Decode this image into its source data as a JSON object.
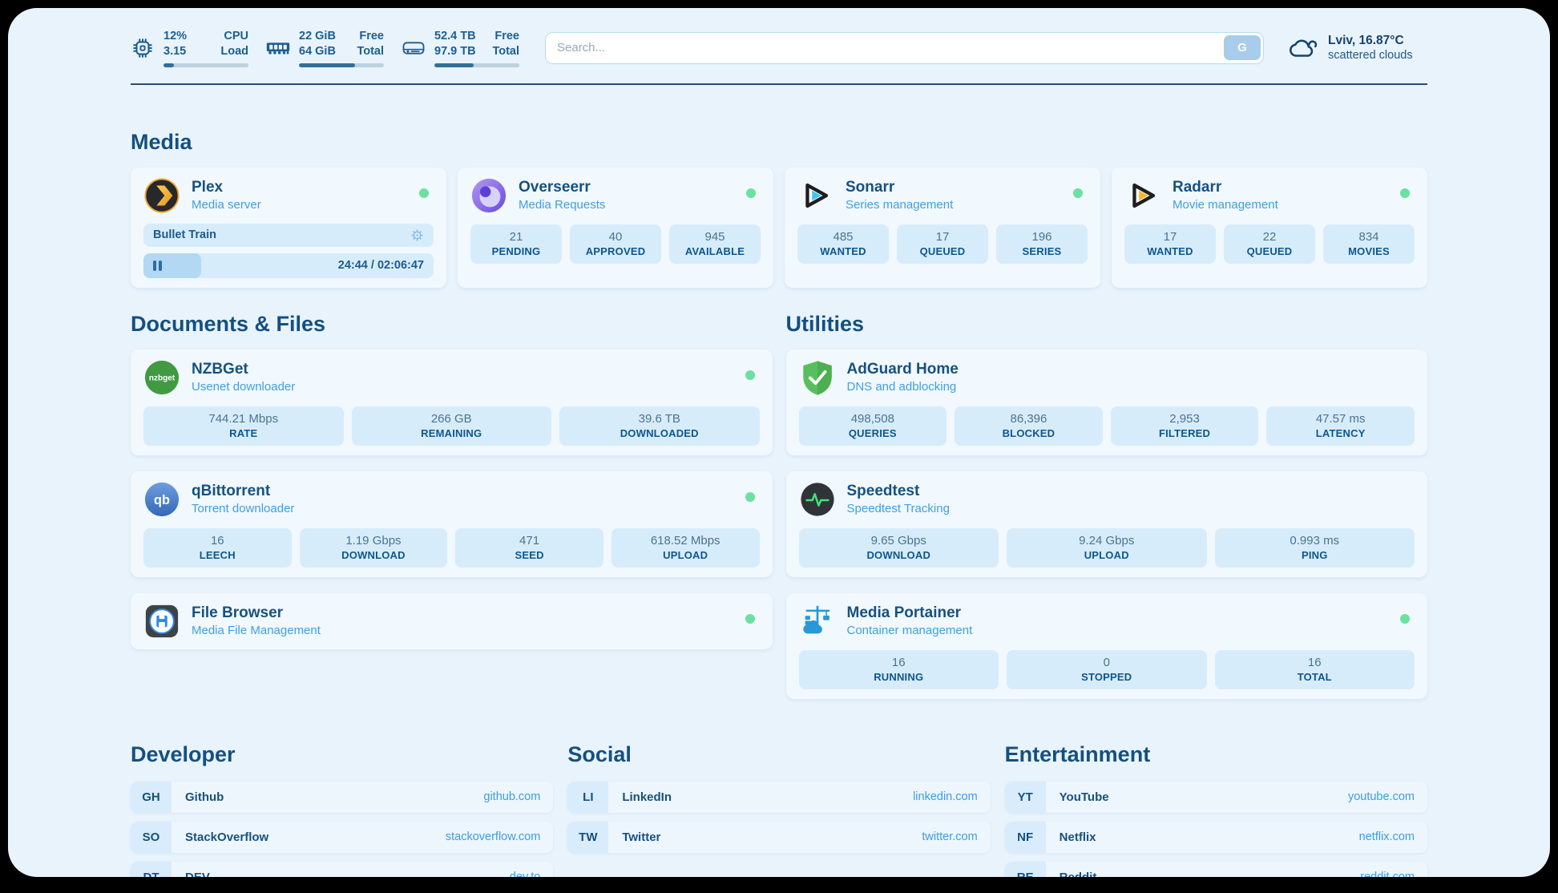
{
  "header": {
    "metrics": [
      {
        "icon": "cpu-icon",
        "rows": [
          [
            "12%",
            "CPU"
          ],
          [
            "3.15",
            "Load"
          ]
        ],
        "progress_pct": 12
      },
      {
        "icon": "ram-icon",
        "rows": [
          [
            "22 GiB",
            "Free"
          ],
          [
            "64 GiB",
            "Total"
          ]
        ],
        "progress_pct": 66
      },
      {
        "icon": "disk-icon",
        "rows": [
          [
            "52.4 TB",
            "Free"
          ],
          [
            "97.9 TB",
            "Total"
          ]
        ],
        "progress_pct": 46
      }
    ],
    "search": {
      "placeholder": "Search...",
      "button_label": "G"
    },
    "weather": {
      "icon": "cloud-icon",
      "location": "Lviv, 16.87°C",
      "condition": "scattered clouds"
    }
  },
  "media_section": {
    "title": "Media",
    "apps": [
      {
        "icon": "plex-icon",
        "title": "Plex",
        "subtitle": "Media server",
        "online": true,
        "player": {
          "now_playing": "Bullet Train",
          "progress_pct": 20,
          "time": "24:44 / 02:06:47"
        }
      },
      {
        "icon": "overseerr-icon",
        "title": "Overseerr",
        "subtitle": "Media Requests",
        "online": true,
        "stats": [
          {
            "value": "21",
            "label": "PENDING"
          },
          {
            "value": "40",
            "label": "APPROVED"
          },
          {
            "value": "945",
            "label": "AVAILABLE"
          }
        ]
      },
      {
        "icon": "sonarr-icon",
        "title": "Sonarr",
        "subtitle": "Series management",
        "online": true,
        "stats": [
          {
            "value": "485",
            "label": "WANTED"
          },
          {
            "value": "17",
            "label": "QUEUED"
          },
          {
            "value": "196",
            "label": "SERIES"
          }
        ]
      },
      {
        "icon": "radarr-icon",
        "title": "Radarr",
        "subtitle": "Movie management",
        "online": true,
        "stats": [
          {
            "value": "17",
            "label": "WANTED"
          },
          {
            "value": "22",
            "label": "QUEUED"
          },
          {
            "value": "834",
            "label": "MOVIES"
          }
        ]
      }
    ]
  },
  "columns": [
    {
      "title": "Documents & Files",
      "apps": [
        {
          "icon": "nzbget-icon",
          "title": "NZBGet",
          "subtitle": "Usenet downloader",
          "online": true,
          "stats": [
            {
              "value": "744.21 Mbps",
              "label": "RATE"
            },
            {
              "value": "266 GB",
              "label": "REMAINING"
            },
            {
              "value": "39.6 TB",
              "label": "DOWNLOADED"
            }
          ]
        },
        {
          "icon": "qbittorrent-icon",
          "title": "qBittorrent",
          "subtitle": "Torrent downloader",
          "online": true,
          "stats": [
            {
              "value": "16",
              "label": "LEECH"
            },
            {
              "value": "1.19 Gbps",
              "label": "DOWNLOAD"
            },
            {
              "value": "471",
              "label": "SEED"
            },
            {
              "value": "618.52 Mbps",
              "label": "UPLOAD"
            }
          ]
        },
        {
          "icon": "filebrowser-icon",
          "title": "File Browser",
          "subtitle": "Media File Management",
          "online": true
        }
      ]
    },
    {
      "title": "Utilities",
      "apps": [
        {
          "icon": "adguard-icon",
          "title": "AdGuard Home",
          "subtitle": "DNS and adblocking",
          "online": false,
          "stats": [
            {
              "value": "498,508",
              "label": "QUERIES"
            },
            {
              "value": "86,396",
              "label": "BLOCKED"
            },
            {
              "value": "2,953",
              "label": "FILTERED"
            },
            {
              "value": "47.57 ms",
              "label": "LATENCY"
            }
          ]
        },
        {
          "icon": "speedtest-icon",
          "title": "Speedtest",
          "subtitle": "Speedtest Tracking",
          "online": false,
          "stats": [
            {
              "value": "9.65 Gbps",
              "label": "DOWNLOAD"
            },
            {
              "value": "9.24 Gbps",
              "label": "UPLOAD"
            },
            {
              "value": "0.993 ms",
              "label": "PING"
            }
          ]
        },
        {
          "icon": "portainer-icon",
          "title": "Media Portainer",
          "subtitle": "Container management",
          "online": true,
          "stats": [
            {
              "value": "16",
              "label": "RUNNING"
            },
            {
              "value": "0",
              "label": "STOPPED"
            },
            {
              "value": "16",
              "label": "TOTAL"
            }
          ]
        }
      ]
    }
  ],
  "bookmarks": [
    {
      "title": "Developer",
      "items": [
        {
          "abbr": "GH",
          "name": "Github",
          "url": "github.com"
        },
        {
          "abbr": "SO",
          "name": "StackOverflow",
          "url": "stackoverflow.com"
        },
        {
          "abbr": "DT",
          "name": "DEV",
          "url": "dev.to"
        }
      ]
    },
    {
      "title": "Social",
      "items": [
        {
          "abbr": "LI",
          "name": "LinkedIn",
          "url": "linkedin.com"
        },
        {
          "abbr": "TW",
          "name": "Twitter",
          "url": "twitter.com"
        }
      ]
    },
    {
      "title": "Entertainment",
      "items": [
        {
          "abbr": "YT",
          "name": "YouTube",
          "url": "youtube.com"
        },
        {
          "abbr": "NF",
          "name": "Netflix",
          "url": "netflix.com"
        },
        {
          "abbr": "RE",
          "name": "Reddit",
          "url": "reddit.com"
        }
      ]
    }
  ],
  "colors": {
    "page_bg": "#e8f3fc",
    "navy": "#17517f",
    "link_blue": "#3d9ce2",
    "online_green": "#6ce0a0",
    "tile_bg": "#d7ecfb"
  }
}
